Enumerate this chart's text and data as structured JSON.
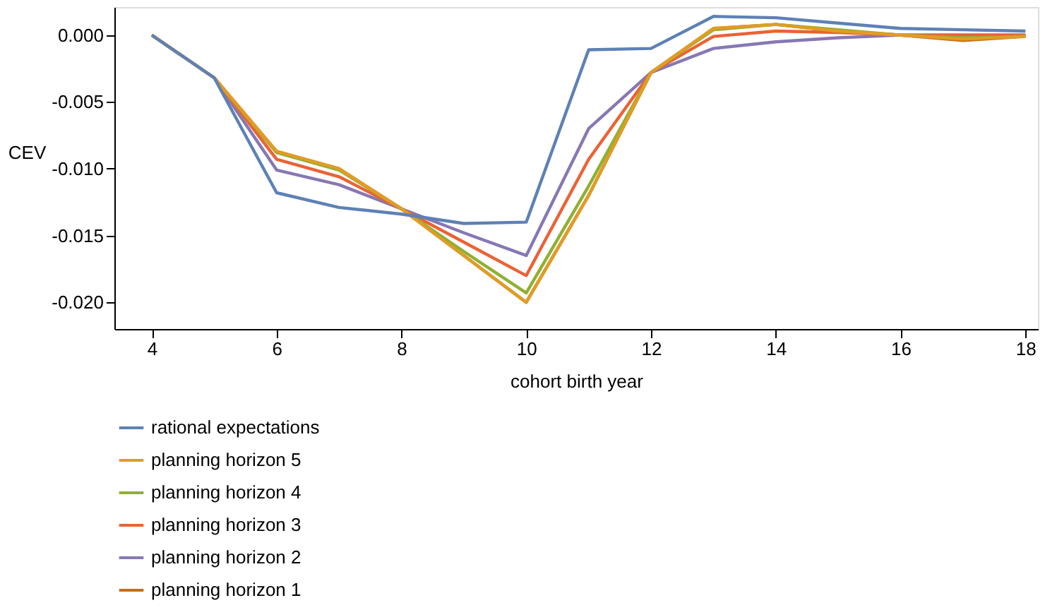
{
  "chart_data": {
    "type": "line",
    "xlabel": "cohort birth year",
    "ylabel": "CEV",
    "x": [
      4,
      5,
      6,
      7,
      8,
      9,
      10,
      11,
      12,
      13,
      14,
      15,
      16,
      17,
      18
    ],
    "xlim": [
      3.4,
      18.2
    ],
    "xticks": [
      4,
      6,
      8,
      10,
      12,
      14,
      16,
      18
    ],
    "ylim": [
      -0.022,
      0.0021
    ],
    "yticks": [
      {
        "value": 0,
        "label": "0.000"
      },
      {
        "value": -0.005,
        "label": "-0.005"
      },
      {
        "value": -0.01,
        "label": "-0.010"
      },
      {
        "value": -0.015,
        "label": "-0.015"
      },
      {
        "value": -0.02,
        "label": "-0.020"
      }
    ],
    "grid": false,
    "legend": "bottom",
    "line_style": "solid",
    "marker": "none",
    "series": [
      {
        "name": "rational expectations",
        "color": "#5e81b5",
        "values": [
          0,
          -0.0032,
          -0.0118,
          -0.0129,
          -0.0134,
          -0.0141,
          -0.014,
          -0.0011,
          -0.001,
          0.0014,
          0.0013,
          0.0009,
          0.0005,
          0.0004,
          0.0003
        ]
      },
      {
        "name": "planning horizon 5",
        "color": "#e19c24",
        "values": [
          0,
          -0.0032,
          -0.0087,
          -0.01,
          -0.013,
          -0.0165,
          -0.02,
          -0.012,
          -0.0028,
          0.0005,
          0.0008,
          0.0003,
          0,
          -0.0003,
          -0.0001
        ]
      },
      {
        "name": "planning horizon 4",
        "color": "#8fb032",
        "values": [
          0,
          -0.0032,
          -0.0088,
          -0.0101,
          -0.013,
          -0.0162,
          -0.0193,
          -0.0113,
          -0.0028,
          0.0004,
          0.0008,
          0.0004,
          0,
          -0.0002,
          -0.0001
        ]
      },
      {
        "name": "planning horizon 3",
        "color": "#eb6235",
        "values": [
          0,
          -0.0032,
          -0.0093,
          -0.0106,
          -0.013,
          -0.0155,
          -0.018,
          -0.0093,
          -0.0028,
          -0.0001,
          0.0003,
          0.0002,
          0,
          0,
          0
        ]
      },
      {
        "name": "planning horizon 2",
        "color": "#8778b3",
        "values": [
          0,
          -0.0032,
          -0.0101,
          -0.0112,
          -0.013,
          -0.0148,
          -0.0165,
          -0.007,
          -0.0028,
          -0.001,
          -0.0005,
          -0.0002,
          0,
          0,
          0
        ]
      },
      {
        "name": "planning horizon 1",
        "color": "#c56e1a",
        "values": [
          0,
          -0.0032,
          -0.0087,
          -0.01,
          -0.013,
          -0.0165,
          -0.02,
          -0.012,
          -0.0028,
          0.0005,
          0.0008,
          0.0003,
          0,
          -0.0004,
          -0.0001
        ]
      }
    ]
  }
}
